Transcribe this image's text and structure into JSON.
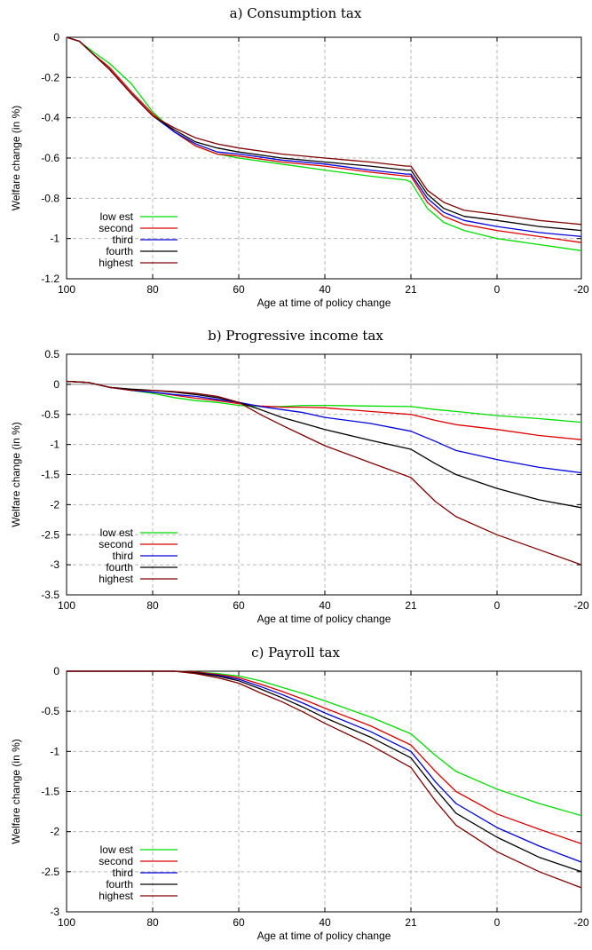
{
  "chart_data": [
    {
      "type": "line",
      "title": "a) Consumption tax",
      "xlabel": "Age at time of policy change",
      "ylabel": "Welfare change (in %)",
      "x_ticks": [
        "100",
        "80",
        "60",
        "40",
        "21",
        "0",
        "-20"
      ],
      "y_ticks": [
        "0",
        "-0.2",
        "-0.4",
        "-0.6",
        "-0.8",
        "-1",
        "-1.2"
      ],
      "ylim": [
        -1.2,
        0
      ],
      "grid": true,
      "legend_position": "bottom-left",
      "x": [
        "100",
        "97",
        "94",
        "90",
        "85",
        "80",
        "75",
        "70",
        "65",
        "60",
        "50",
        "40",
        "30",
        "22",
        "21",
        "17",
        "13",
        "8",
        "0",
        "-10",
        "-20"
      ],
      "series": [
        {
          "name": "low est",
          "color": "#00dd00",
          "values": [
            0,
            -0.02,
            -0.07,
            -0.13,
            -0.23,
            -0.37,
            -0.47,
            -0.54,
            -0.58,
            -0.6,
            -0.63,
            -0.66,
            -0.69,
            -0.71,
            -0.72,
            -0.85,
            -0.92,
            -0.96,
            -1.0,
            -1.03,
            -1.06
          ]
        },
        {
          "name": "second",
          "color": "#dd0000",
          "values": [
            0,
            -0.02,
            -0.08,
            -0.15,
            -0.27,
            -0.38,
            -0.47,
            -0.54,
            -0.58,
            -0.59,
            -0.62,
            -0.64,
            -0.67,
            -0.69,
            -0.69,
            -0.82,
            -0.89,
            -0.93,
            -0.96,
            -0.99,
            -1.02
          ]
        },
        {
          "name": "third",
          "color": "#0000dd",
          "values": [
            0,
            -0.02,
            -0.08,
            -0.16,
            -0.28,
            -0.39,
            -0.47,
            -0.53,
            -0.57,
            -0.58,
            -0.61,
            -0.63,
            -0.66,
            -0.68,
            -0.68,
            -0.8,
            -0.87,
            -0.91,
            -0.94,
            -0.97,
            -0.99
          ]
        },
        {
          "name": "fourth",
          "color": "#000000",
          "values": [
            0,
            -0.02,
            -0.08,
            -0.16,
            -0.28,
            -0.39,
            -0.46,
            -0.52,
            -0.55,
            -0.57,
            -0.6,
            -0.62,
            -0.64,
            -0.66,
            -0.66,
            -0.78,
            -0.85,
            -0.89,
            -0.91,
            -0.94,
            -0.96
          ]
        },
        {
          "name": "highest",
          "color": "#800000",
          "values": [
            0,
            -0.02,
            -0.08,
            -0.16,
            -0.28,
            -0.39,
            -0.45,
            -0.5,
            -0.53,
            -0.55,
            -0.58,
            -0.6,
            -0.62,
            -0.64,
            -0.64,
            -0.76,
            -0.82,
            -0.86,
            -0.88,
            -0.91,
            -0.93
          ]
        }
      ]
    },
    {
      "type": "line",
      "title": "b) Progressive income tax",
      "xlabel": "Age at time of policy change",
      "ylabel": "Welfare change (in %)",
      "x_ticks": [
        "100",
        "80",
        "60",
        "40",
        "21",
        "0",
        "-20"
      ],
      "y_ticks": [
        "0.5",
        "0",
        "-0.5",
        "-1",
        "-1.5",
        "-2",
        "-2.5",
        "-3",
        "-3.5"
      ],
      "ylim": [
        -3.5,
        0.5
      ],
      "grid": true,
      "zero_line": true,
      "legend_position": "bottom-left",
      "x": [
        "100",
        "95",
        "90",
        "85",
        "80",
        "75",
        "70",
        "65",
        "60",
        "55",
        "50",
        "45",
        "40",
        "30",
        "21",
        "15",
        "10",
        "0",
        "-10",
        "-20"
      ],
      "series": [
        {
          "name": "low est",
          "color": "#00dd00",
          "values": [
            0.05,
            0.03,
            -0.05,
            -0.1,
            -0.15,
            -0.22,
            -0.27,
            -0.3,
            -0.35,
            -0.37,
            -0.37,
            -0.35,
            -0.35,
            -0.36,
            -0.37,
            -0.42,
            -0.45,
            -0.52,
            -0.57,
            -0.63
          ]
        },
        {
          "name": "second",
          "color": "#dd0000",
          "values": [
            0.05,
            0.03,
            -0.05,
            -0.1,
            -0.13,
            -0.18,
            -0.23,
            -0.27,
            -0.32,
            -0.36,
            -0.38,
            -0.38,
            -0.39,
            -0.45,
            -0.5,
            -0.6,
            -0.67,
            -0.75,
            -0.85,
            -0.92
          ]
        },
        {
          "name": "third",
          "color": "#0000dd",
          "values": [
            0.05,
            0.03,
            -0.05,
            -0.1,
            -0.13,
            -0.17,
            -0.2,
            -0.25,
            -0.3,
            -0.37,
            -0.42,
            -0.47,
            -0.55,
            -0.65,
            -0.78,
            -0.95,
            -1.1,
            -1.25,
            -1.38,
            -1.47
          ]
        },
        {
          "name": "fourth",
          "color": "#000000",
          "values": [
            0.05,
            0.03,
            -0.05,
            -0.08,
            -0.1,
            -0.13,
            -0.17,
            -0.22,
            -0.3,
            -0.42,
            -0.55,
            -0.65,
            -0.75,
            -0.93,
            -1.08,
            -1.32,
            -1.5,
            -1.73,
            -1.92,
            -2.05
          ]
        },
        {
          "name": "highest",
          "color": "#800000",
          "values": [
            0.05,
            0.03,
            -0.05,
            -0.1,
            -0.1,
            -0.12,
            -0.15,
            -0.2,
            -0.3,
            -0.5,
            -0.68,
            -0.85,
            -1.02,
            -1.3,
            -1.55,
            -1.95,
            -2.2,
            -2.5,
            -2.75,
            -3.0
          ]
        }
      ]
    },
    {
      "type": "line",
      "title": "c) Payroll tax",
      "xlabel": "Age at time of policy change",
      "ylabel": "Welfare change (in %)",
      "x_ticks": [
        "100",
        "80",
        "60",
        "40",
        "21",
        "0",
        "-20"
      ],
      "y_ticks": [
        "0",
        "-0.5",
        "-1",
        "-1.5",
        "-2",
        "-2.5",
        "-3"
      ],
      "ylim": [
        -3,
        0
      ],
      "grid": true,
      "legend_position": "bottom-left",
      "x": [
        "100",
        "90",
        "80",
        "75",
        "70",
        "65",
        "60",
        "55",
        "50",
        "45",
        "40",
        "30",
        "21",
        "15",
        "10",
        "0",
        "-10",
        "-20"
      ],
      "series": [
        {
          "name": "low est",
          "color": "#00dd00",
          "values": [
            0,
            0,
            0,
            0,
            -0.01,
            -0.03,
            -0.06,
            -0.12,
            -0.2,
            -0.28,
            -0.37,
            -0.57,
            -0.78,
            -1.05,
            -1.25,
            -1.47,
            -1.65,
            -1.8
          ]
        },
        {
          "name": "second",
          "color": "#dd0000",
          "values": [
            0,
            0,
            0,
            0,
            -0.01,
            -0.04,
            -0.08,
            -0.16,
            -0.25,
            -0.35,
            -0.46,
            -0.68,
            -0.92,
            -1.25,
            -1.5,
            -1.78,
            -1.97,
            -2.15
          ]
        },
        {
          "name": "third",
          "color": "#0000dd",
          "values": [
            0,
            0,
            0,
            0,
            -0.02,
            -0.05,
            -0.1,
            -0.19,
            -0.29,
            -0.4,
            -0.52,
            -0.75,
            -1.0,
            -1.38,
            -1.65,
            -1.95,
            -2.18,
            -2.38
          ]
        },
        {
          "name": "fourth",
          "color": "#000000",
          "values": [
            0,
            0,
            0,
            0,
            -0.02,
            -0.06,
            -0.12,
            -0.22,
            -0.33,
            -0.45,
            -0.58,
            -0.82,
            -1.08,
            -1.47,
            -1.77,
            -2.07,
            -2.32,
            -2.5
          ]
        },
        {
          "name": "highest",
          "color": "#800000",
          "values": [
            0,
            0,
            0,
            0,
            -0.03,
            -0.08,
            -0.15,
            -0.27,
            -0.38,
            -0.51,
            -0.65,
            -0.92,
            -1.2,
            -1.62,
            -1.92,
            -2.25,
            -2.5,
            -2.7
          ]
        }
      ]
    }
  ]
}
